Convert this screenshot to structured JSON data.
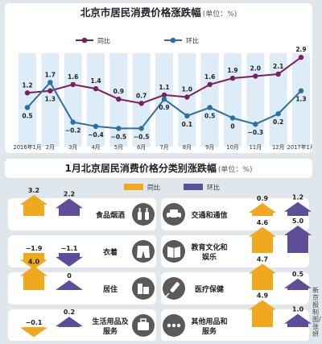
{
  "chart_data": [
    {
      "type": "line",
      "title": "北京市居民消费价格涨跌幅",
      "unit": "(单位：%)",
      "categories": [
        "2016年1月",
        "2月",
        "3月",
        "4月",
        "5月",
        "6月",
        "7月",
        "8月",
        "9月",
        "10月",
        "11月",
        "12月",
        "2017年1月"
      ],
      "series": [
        {
          "name": "同比",
          "color": "#7b1f5e",
          "values": [
            1.2,
            1.3,
            1.6,
            1.4,
            0.9,
            0.7,
            1.1,
            1.0,
            1.6,
            1.9,
            2.0,
            2.1,
            2.9
          ]
        },
        {
          "name": "环比",
          "color": "#2c6fa3",
          "values": [
            0.5,
            1.7,
            -0.2,
            -0.4,
            -0.5,
            -0.5,
            0.9,
            0.1,
            0.5,
            0,
            -0.3,
            0.2,
            1.3
          ]
        }
      ],
      "legend_position": "top"
    },
    {
      "type": "bar",
      "title": "1月北京居民消费价格分类别涨跌幅",
      "unit": "(单位：%)",
      "legend": [
        {
          "name": "同比",
          "color": "#f0a81e"
        },
        {
          "name": "环比",
          "color": "#5e4e99"
        }
      ],
      "categories": [
        {
          "label": "食品烟酒",
          "icon": "food-tobacco-icon",
          "yoy": 3.2,
          "mom": 2.2
        },
        {
          "label": "衣着",
          "icon": "clothing-icon",
          "yoy": -1.9,
          "mom": -1.1
        },
        {
          "label": "居住",
          "icon": "housing-icon",
          "yoy": 4.0,
          "mom": 0.0
        },
        {
          "label": "生活用品及服务",
          "icon": "household-goods-icon",
          "yoy": -0.1,
          "mom": 0.2
        },
        {
          "label": "交通和通信",
          "icon": "car-icon",
          "yoy": 0.9,
          "mom": 1.2
        },
        {
          "label": "教育文化和娱乐",
          "icon": "book-icon",
          "yoy": 4.6,
          "mom": 5.0
        },
        {
          "label": "医疗保健",
          "icon": "syringe-icon",
          "yoy": 4.7,
          "mom": 0.5
        },
        {
          "label": "其他用品和服务",
          "icon": "more-icon",
          "yoy": 4.9,
          "mom": 1.0
        }
      ]
    }
  ],
  "credit": "新京报制图/张妍"
}
